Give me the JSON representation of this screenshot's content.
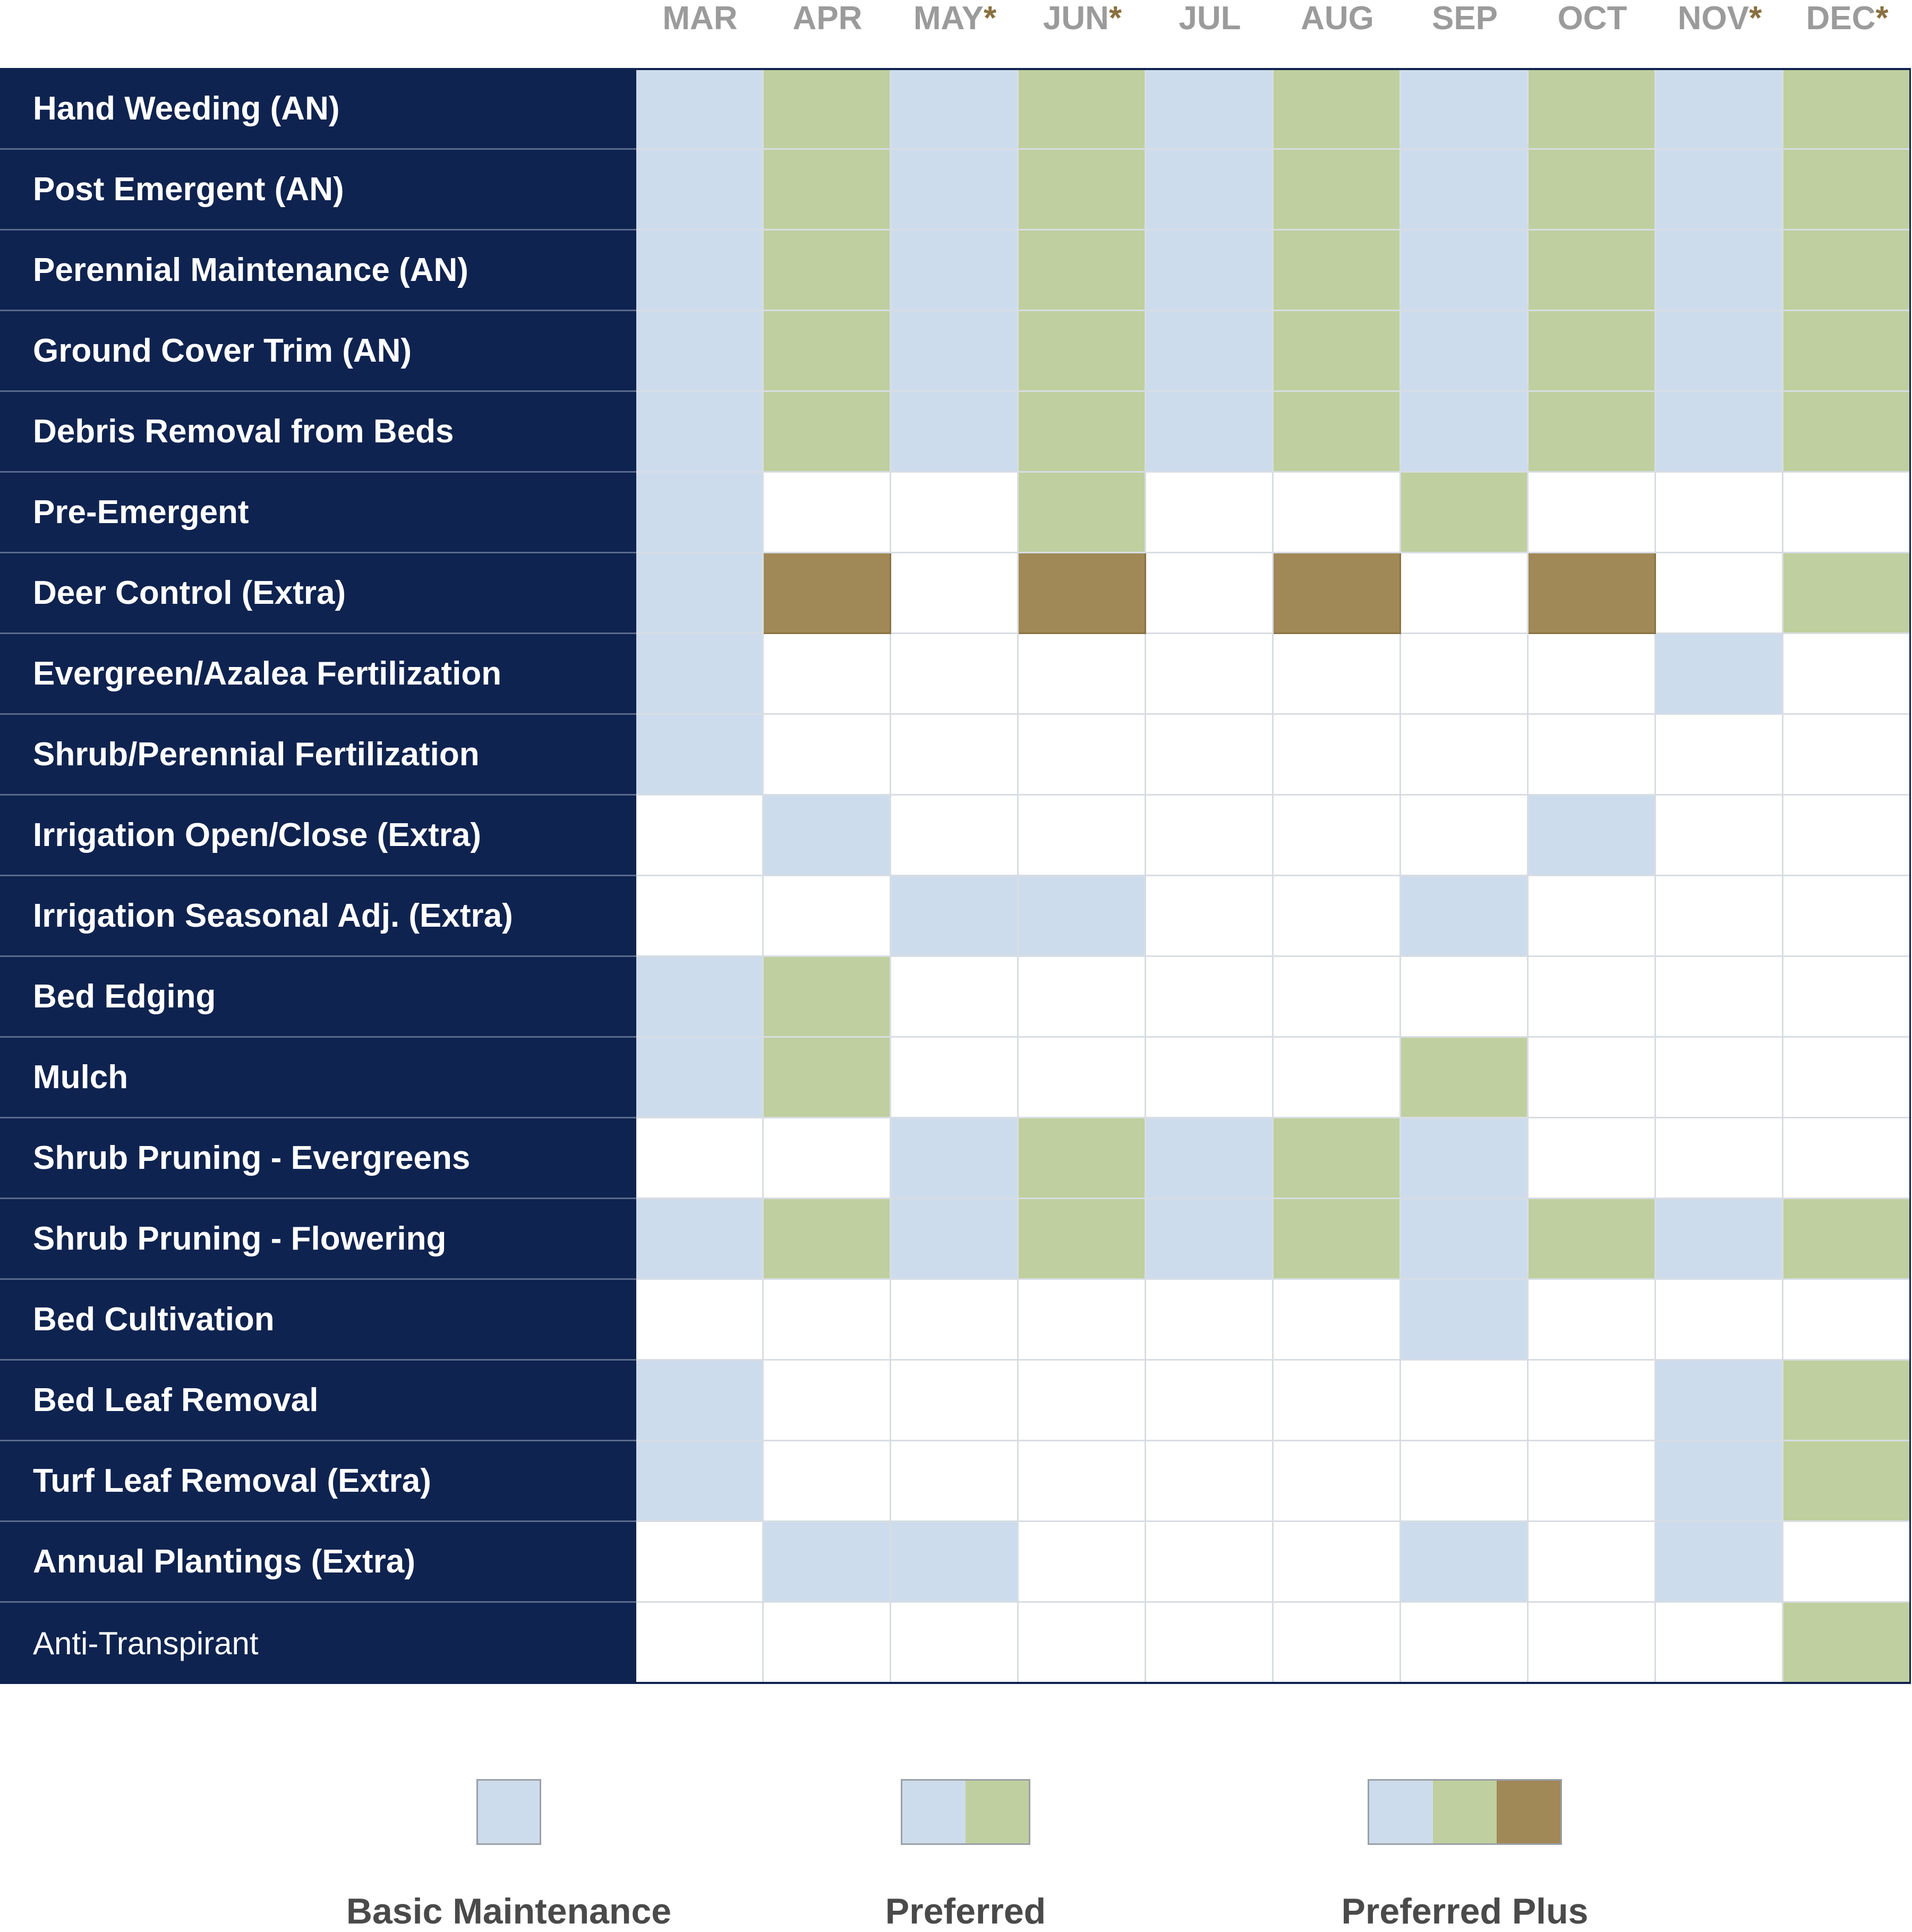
{
  "colors": {
    "label_bg": "#0f2350",
    "basic": "#cddcec",
    "preferred": "#c0cf9f",
    "preferred_plus": "#a08857",
    "empty": "#ffffff",
    "month_text": "#9b9b9b",
    "asterisk": "#8a7040"
  },
  "chart_data": {
    "type": "table",
    "columns": [
      {
        "label": "MAR",
        "star": ""
      },
      {
        "label": "APR",
        "star": ""
      },
      {
        "label": "MAY",
        "star": "*"
      },
      {
        "label": "JUN",
        "star": "*"
      },
      {
        "label": "JUL",
        "star": ""
      },
      {
        "label": "AUG",
        "star": ""
      },
      {
        "label": "SEP",
        "star": ""
      },
      {
        "label": "OCT",
        "star": ""
      },
      {
        "label": "NOV",
        "star": "*"
      },
      {
        "label": "DEC",
        "star": "*"
      }
    ],
    "legend": [
      {
        "label": "Basic Maintenance",
        "swatches": [
          "basic"
        ]
      },
      {
        "label": "Preferred",
        "swatches": [
          "basic",
          "preferred"
        ]
      },
      {
        "label": "Preferred Plus",
        "swatches": [
          "basic",
          "preferred",
          "preferred_plus"
        ]
      }
    ],
    "rows": [
      {
        "label": "Hand Weeding (AN)",
        "cells": [
          "basic",
          "preferred",
          "basic",
          "preferred",
          "basic",
          "preferred",
          "basic",
          "preferred",
          "basic",
          "preferred"
        ]
      },
      {
        "label": "Post Emergent (AN)",
        "cells": [
          "basic",
          "preferred",
          "basic",
          "preferred",
          "basic",
          "preferred",
          "basic",
          "preferred",
          "basic",
          "preferred"
        ]
      },
      {
        "label": "Perennial Maintenance (AN)",
        "cells": [
          "basic",
          "preferred",
          "basic",
          "preferred",
          "basic",
          "preferred",
          "basic",
          "preferred",
          "basic",
          "preferred"
        ]
      },
      {
        "label": "Ground Cover Trim (AN)",
        "cells": [
          "basic",
          "preferred",
          "basic",
          "preferred",
          "basic",
          "preferred",
          "basic",
          "preferred",
          "basic",
          "preferred"
        ]
      },
      {
        "label": "Debris Removal from Beds",
        "cells": [
          "basic",
          "preferred",
          "basic",
          "preferred",
          "basic",
          "preferred",
          "basic",
          "preferred",
          "basic",
          "preferred"
        ]
      },
      {
        "label": "Pre-Emergent",
        "cells": [
          "basic",
          "empty",
          "empty",
          "preferred",
          "empty",
          "empty",
          "preferred",
          "empty",
          "empty",
          "empty"
        ]
      },
      {
        "label": "Deer Control (Extra)",
        "cells": [
          "basic",
          "preferred_plus",
          "empty",
          "preferred_plus",
          "empty",
          "preferred_plus",
          "empty",
          "preferred_plus",
          "empty",
          "preferred"
        ]
      },
      {
        "label": "Evergreen/Azalea Fertilization",
        "cells": [
          "basic",
          "empty",
          "empty",
          "empty",
          "empty",
          "empty",
          "empty",
          "empty",
          "basic",
          "empty"
        ]
      },
      {
        "label": "Shrub/Perennial Fertilization",
        "cells": [
          "basic",
          "empty",
          "empty",
          "empty",
          "empty",
          "empty",
          "empty",
          "empty",
          "empty",
          "empty"
        ]
      },
      {
        "label": "Irrigation Open/Close (Extra)",
        "cells": [
          "empty",
          "basic",
          "empty",
          "empty",
          "empty",
          "empty",
          "empty",
          "basic",
          "empty",
          "empty"
        ]
      },
      {
        "label": "Irrigation Seasonal Adj. (Extra)",
        "cells": [
          "empty",
          "empty",
          "basic",
          "basic",
          "empty",
          "empty",
          "basic",
          "empty",
          "empty",
          "empty"
        ]
      },
      {
        "label": "Bed Edging",
        "cells": [
          "basic",
          "preferred",
          "empty",
          "empty",
          "empty",
          "empty",
          "empty",
          "empty",
          "empty",
          "empty"
        ]
      },
      {
        "label": "Mulch",
        "cells": [
          "basic",
          "preferred",
          "empty",
          "empty",
          "empty",
          "empty",
          "preferred",
          "empty",
          "empty",
          "empty"
        ]
      },
      {
        "label": "Shrub Pruning - Evergreens",
        "cells": [
          "empty",
          "empty",
          "basic",
          "preferred",
          "basic",
          "preferred",
          "basic",
          "empty",
          "empty",
          "empty"
        ]
      },
      {
        "label": "Shrub Pruning - Flowering",
        "cells": [
          "basic",
          "preferred",
          "basic",
          "preferred",
          "basic",
          "preferred",
          "basic",
          "preferred",
          "basic",
          "preferred"
        ]
      },
      {
        "label": "Bed Cultivation",
        "cells": [
          "empty",
          "empty",
          "empty",
          "empty",
          "empty",
          "empty",
          "basic",
          "empty",
          "empty",
          "empty"
        ]
      },
      {
        "label": "Bed Leaf Removal",
        "cells": [
          "basic",
          "empty",
          "empty",
          "empty",
          "empty",
          "empty",
          "empty",
          "empty",
          "basic",
          "preferred"
        ]
      },
      {
        "label": "Turf Leaf Removal (Extra)",
        "cells": [
          "basic",
          "empty",
          "empty",
          "empty",
          "empty",
          "empty",
          "empty",
          "empty",
          "basic",
          "preferred"
        ]
      },
      {
        "label": "Annual Plantings (Extra)",
        "cells": [
          "empty",
          "basic",
          "basic",
          "empty",
          "empty",
          "empty",
          "basic",
          "empty",
          "basic",
          "empty"
        ]
      },
      {
        "label": "Anti-Transpirant",
        "cells": [
          "empty",
          "empty",
          "empty",
          "empty",
          "empty",
          "empty",
          "empty",
          "empty",
          "empty",
          "preferred"
        ],
        "thin": true
      }
    ]
  }
}
